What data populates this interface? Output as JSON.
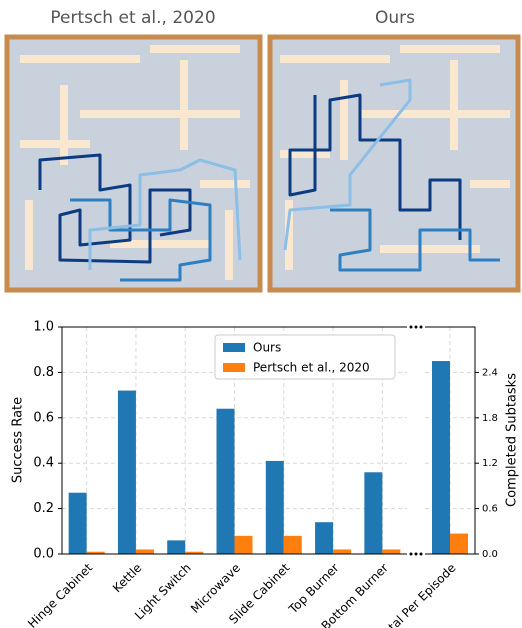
{
  "panels": [
    {
      "label": "Pertsch et al., 2020"
    },
    {
      "label": "Ours"
    }
  ],
  "chart_data": {
    "type": "bar",
    "categories": [
      "Hinge Cabinet",
      "Kettle",
      "Light Switch",
      "Microwave",
      "Slide Cabinet",
      "Top Burner",
      "Bottom Burner"
    ],
    "series": [
      {
        "name": "Ours",
        "color": "#1f77b4",
        "values": [
          0.27,
          0.72,
          0.06,
          0.64,
          0.41,
          0.14,
          0.36
        ]
      },
      {
        "name": "Pertsch et al., 2020",
        "color": "#ff7f0e",
        "values": [
          0.01,
          0.02,
          0.01,
          0.08,
          0.08,
          0.02,
          0.02
        ]
      }
    ],
    "total": {
      "category": "Total Per Episode",
      "axis": "y2",
      "values": [
        2.55,
        0.27
      ]
    },
    "ylabel": "Success Rate",
    "y2label": "Completed Subtasks",
    "ylim": [
      0,
      1.0
    ],
    "yticks": [
      {
        "value": 0,
        "label": "0.0"
      },
      0.2,
      0.4,
      0.6,
      0.8,
      {
        "value": 1,
        "label": "1.0"
      }
    ],
    "y2lim": [
      0,
      3.0
    ],
    "y2ticks": [
      {
        "value": 0,
        "label": "0.0"
      },
      0.6,
      1.2,
      1.8,
      2.4
    ],
    "grid": true,
    "legend": "upper center"
  }
}
